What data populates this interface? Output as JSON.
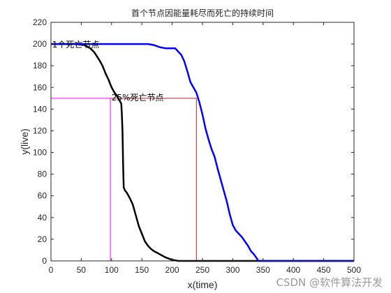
{
  "chart_data": {
    "type": "line",
    "title": "首个节点因能量耗尽而死亡的持续时间",
    "xlabel": "x(time)",
    "ylabel": "y(live)",
    "xlim": [
      0,
      500
    ],
    "ylim": [
      0,
      220
    ],
    "xticks": [
      0,
      50,
      100,
      150,
      200,
      250,
      300,
      350,
      400,
      450,
      500
    ],
    "yticks": [
      0,
      20,
      40,
      60,
      80,
      100,
      120,
      140,
      160,
      180,
      200,
      220
    ],
    "grid": false,
    "legend": "none",
    "series": [
      {
        "color": "#000000",
        "x": [
          0,
          40,
          55,
          65,
          72,
          80,
          85,
          90,
          95,
          100,
          105,
          108,
          112,
          116,
          117,
          118,
          119,
          120,
          122,
          125,
          130,
          135,
          140,
          145,
          150,
          155,
          160,
          165,
          170,
          180,
          190,
          200,
          210,
          500
        ],
        "y": [
          200,
          200,
          199,
          196,
          192,
          185,
          180,
          173,
          167,
          160,
          155,
          153,
          149,
          145,
          135,
          120,
          90,
          68,
          65,
          63,
          58,
          52,
          42,
          32,
          25,
          18,
          14,
          11,
          9,
          6,
          3,
          1,
          0,
          0
        ]
      },
      {
        "color": "#0000ff",
        "x": [
          0,
          160,
          170,
          180,
          190,
          205,
          210,
          215,
          220,
          225,
          230,
          235,
          240,
          245,
          250,
          255,
          260,
          265,
          270,
          275,
          280,
          285,
          290,
          295,
          300,
          305,
          310,
          315,
          320,
          325,
          330,
          335,
          340,
          342,
          345,
          500
        ],
        "y": [
          200,
          200,
          199,
          197,
          196,
          196,
          193,
          190,
          184,
          175,
          165,
          160,
          155,
          146,
          135,
          122,
          112,
          103,
          96,
          85,
          75,
          65,
          55,
          43,
          33,
          28,
          25,
          22,
          18,
          14,
          9,
          6,
          2,
          0,
          0,
          0
        ]
      }
    ],
    "reference_lines": [
      {
        "color": "#ff00ff",
        "points": [
          [
            0,
            0
          ],
          [
            0,
            200
          ]
        ]
      },
      {
        "color": "#ff00ff",
        "points": [
          [
            0,
            150
          ],
          [
            98,
            150
          ]
        ]
      },
      {
        "color": "#ff00ff",
        "points": [
          [
            98,
            0
          ],
          [
            98,
            150
          ]
        ]
      },
      {
        "color": "#b22222",
        "points": [
          [
            98,
            150
          ],
          [
            240,
            150
          ]
        ]
      },
      {
        "color": "#b22222",
        "points": [
          [
            240,
            0
          ],
          [
            240,
            150
          ]
        ]
      }
    ],
    "annotations": [
      {
        "text": "1个死亡节点",
        "x": 2,
        "y": 197
      },
      {
        "text": "25%死亡节点",
        "x": 100,
        "y": 148
      }
    ]
  },
  "watermark": "CSDN @软件算法开发"
}
